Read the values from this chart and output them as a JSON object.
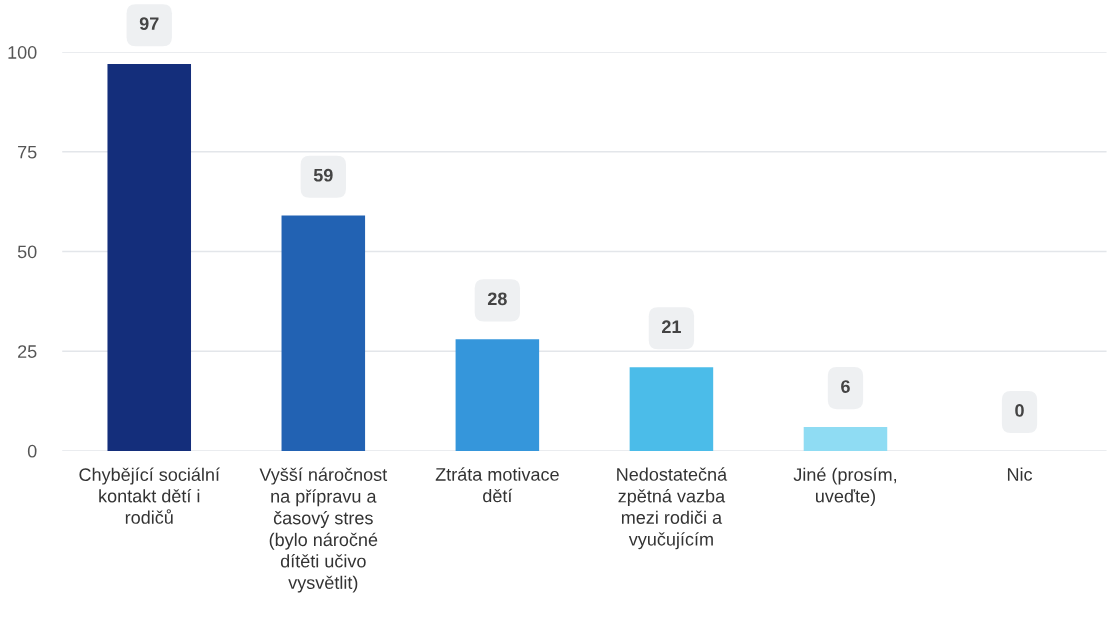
{
  "chart_data": {
    "type": "bar",
    "categories": [
      "Chybějící sociální\nkontakt dětí i\nrodičů",
      "Vyšší náročnost\nna přípravu a\nčasový stres\n(bylo náročné\ndítěti učivo\nvysvětlit)",
      "Ztráta motivace\ndětí",
      "Nedostatečná\nzpětná vazba\nmezi rodiči a\nvyučujícím",
      "Jiné (prosím,\nuveďte)",
      "Nic"
    ],
    "values": [
      97,
      59,
      28,
      21,
      6,
      0
    ],
    "colors": [
      "#142e7b",
      "#2262b3",
      "#3596db",
      "#4bbce9",
      "#8fdcf3",
      "#c8eef8"
    ],
    "ylim": [
      0,
      100
    ],
    "yticks": [
      0,
      25,
      50,
      75,
      100
    ],
    "grid": "y",
    "data_labels": true
  }
}
